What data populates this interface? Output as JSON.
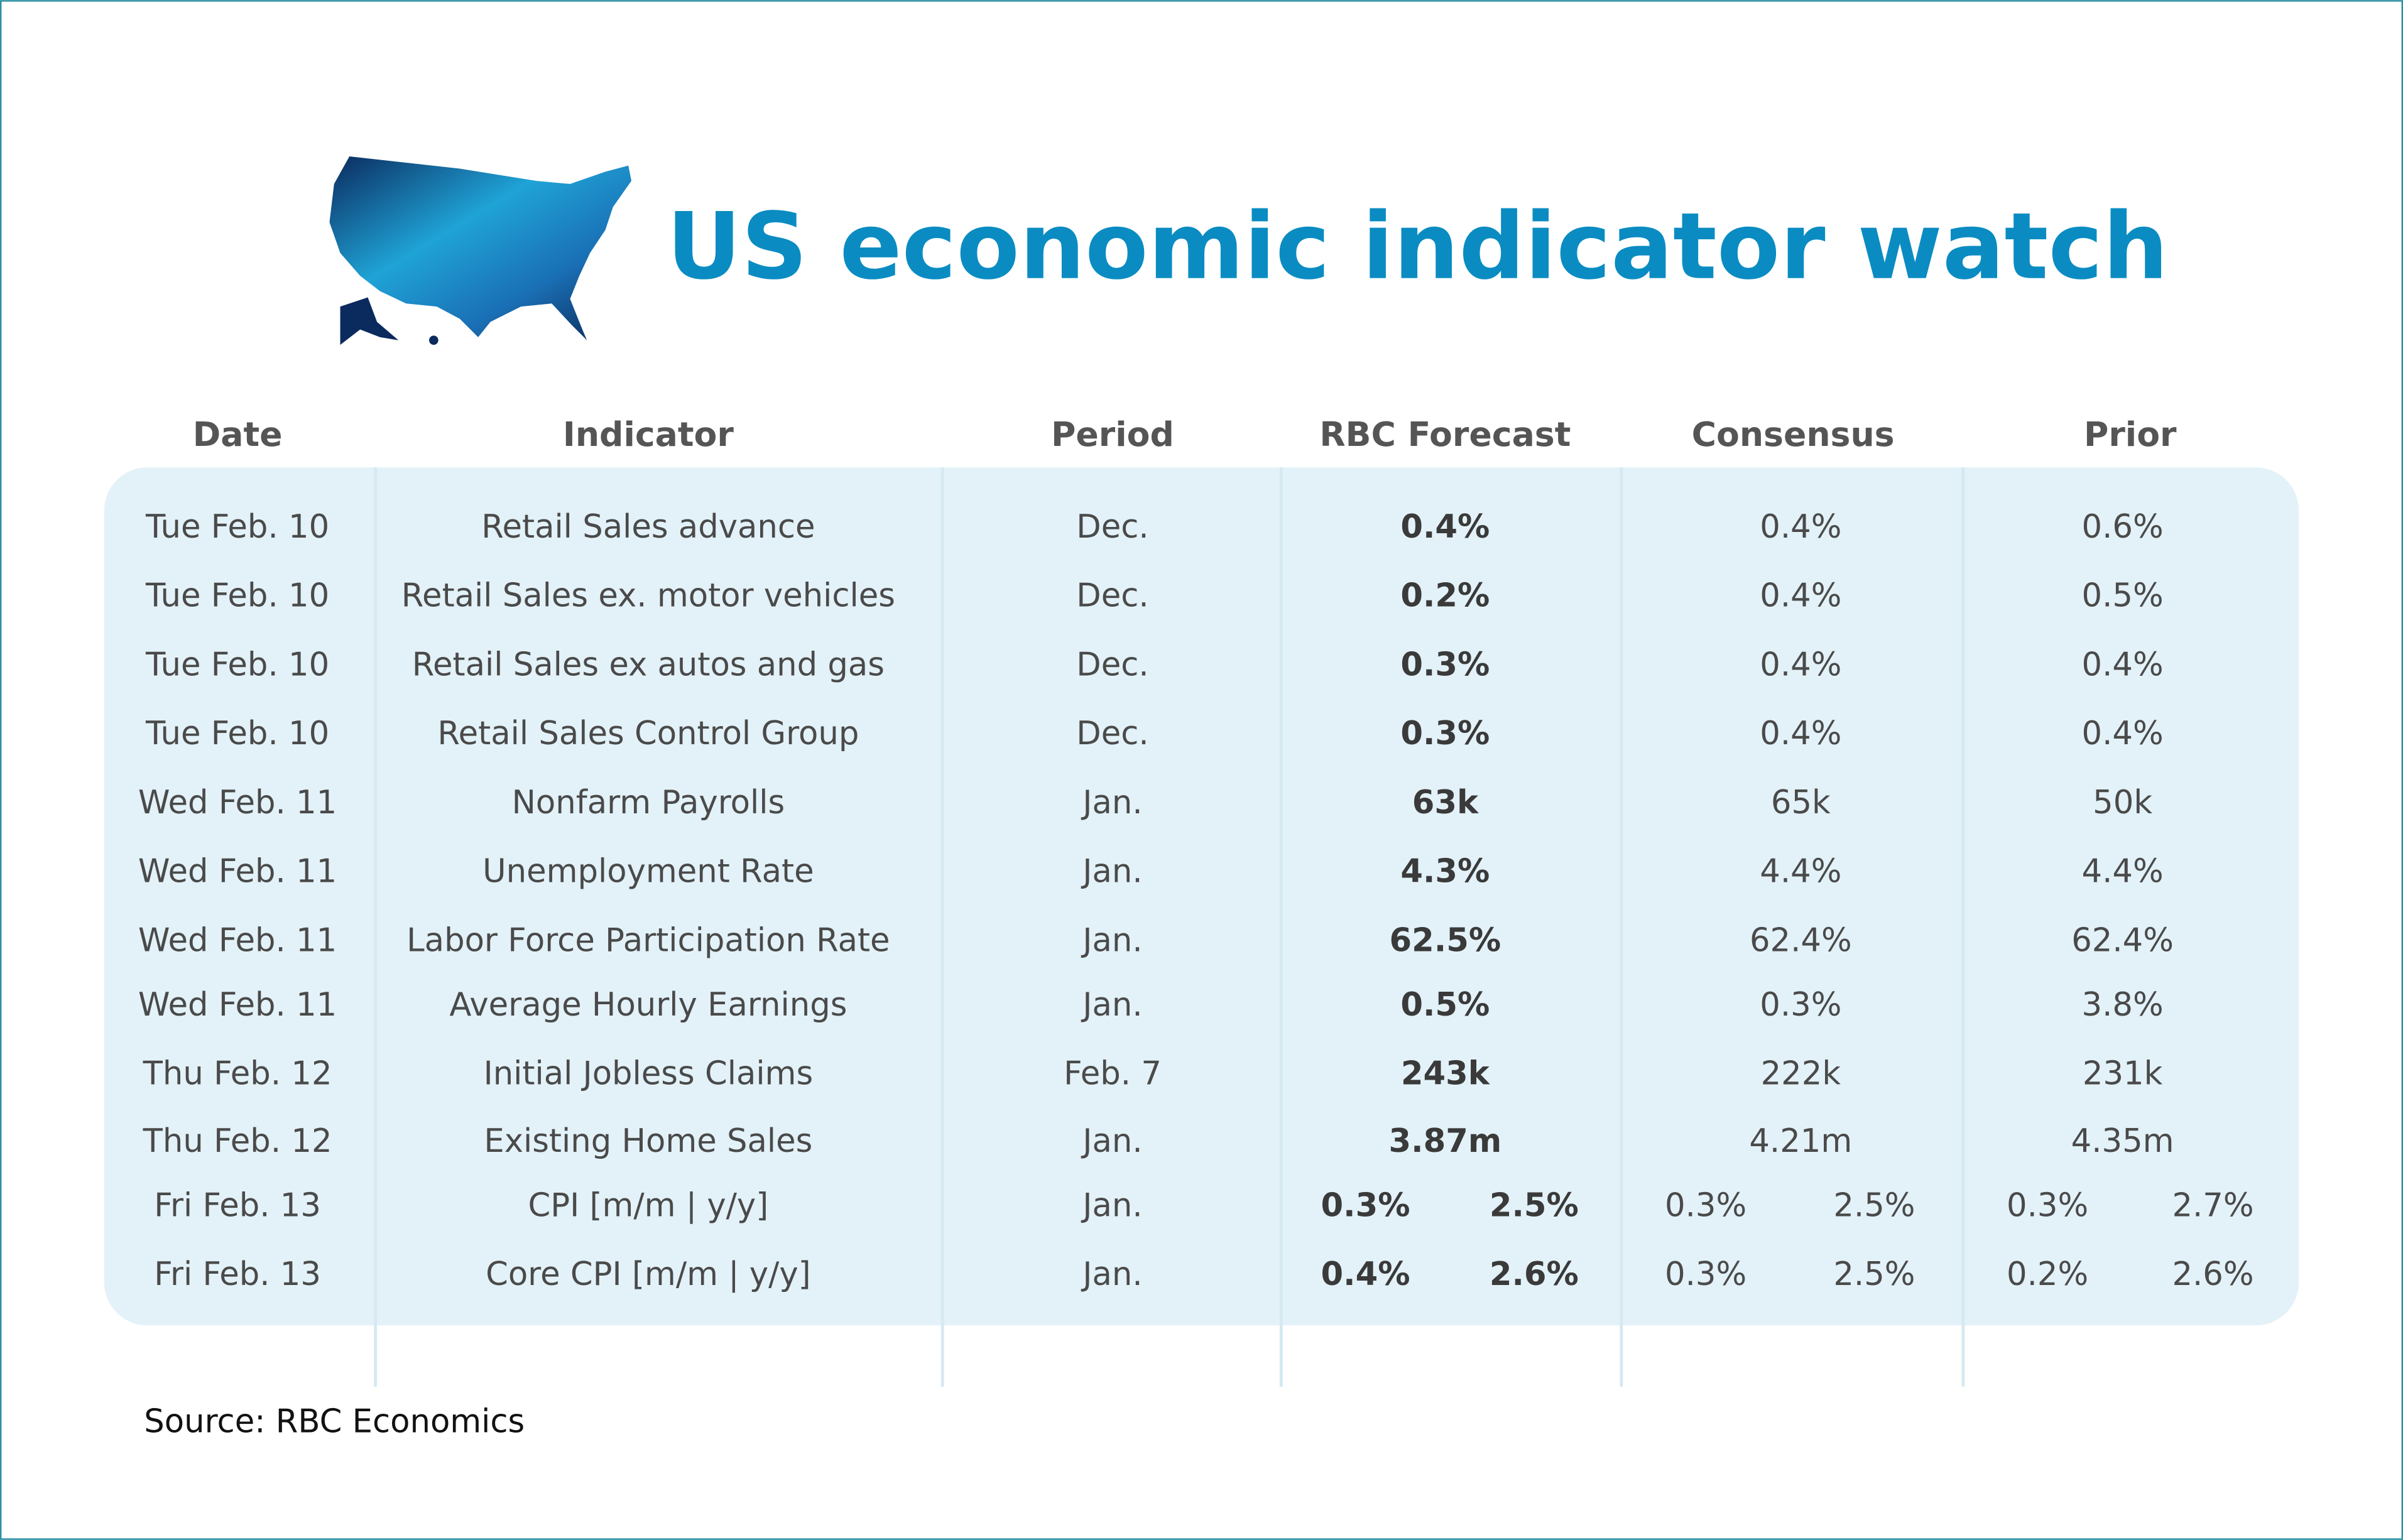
{
  "header": {
    "title": "US economic indicator watch"
  },
  "table": {
    "columns": [
      "Date",
      "Indicator",
      "Period",
      "RBC Forecast",
      "Consensus",
      "Prior"
    ],
    "rows": [
      [
        "Tue Feb. 10",
        "Retail Sales advance",
        "Dec.",
        "0.4%",
        "0.4%",
        "0.6%"
      ],
      [
        "Tue Feb. 10",
        "Retail Sales ex. motor vehicles",
        "Dec.",
        "0.2%",
        "0.4%",
        "0.5%"
      ],
      [
        "Tue Feb. 10",
        "Retail Sales ex autos and gas",
        "Dec.",
        "0.3%",
        "0.4%",
        "0.4%"
      ],
      [
        "Tue Feb. 10",
        "Retail Sales Control Group",
        "Dec.",
        "0.3%",
        "0.4%",
        "0.4%"
      ],
      [
        "Wed Feb. 11",
        "Nonfarm Payrolls",
        "Jan.",
        "63k",
        "65k",
        "50k"
      ],
      [
        "Wed Feb. 11",
        "Unemployment Rate",
        "Jan.",
        "4.3%",
        "4.4%",
        "4.4%"
      ],
      [
        "Wed Feb. 11",
        "Labor Force Participation Rate",
        "Jan.",
        "62.5%",
        "62.4%",
        "62.4%"
      ],
      [
        "Wed Feb. 11",
        "Average Hourly Earnings",
        "Jan.",
        "0.5%",
        "0.3%",
        "3.8%"
      ],
      [
        "Thu Feb. 12",
        "Initial Jobless Claims",
        "Feb. 7",
        "243k",
        "222k",
        "231k"
      ],
      [
        "Thu Feb. 12",
        "Existing Home Sales",
        "Jan.",
        "3.87m",
        "4.21m",
        "4.35m"
      ],
      [
        "Fri Feb. 13",
        "CPI [m/m | y/y]",
        "Jan.",
        [
          "0.3%",
          "2.5%"
        ],
        [
          "0.3%",
          "2.5%"
        ],
        [
          "0.3%",
          "2.7%"
        ]
      ],
      [
        "Fri Feb. 13",
        "Core CPI [m/m | y/y]",
        "Jan.",
        [
          "0.4%",
          "2.6%"
        ],
        [
          "0.3%",
          "2.5%"
        ],
        [
          "0.2%",
          "2.6%"
        ]
      ]
    ]
  },
  "footer": {
    "source": "Source:  RBC Economics"
  }
}
